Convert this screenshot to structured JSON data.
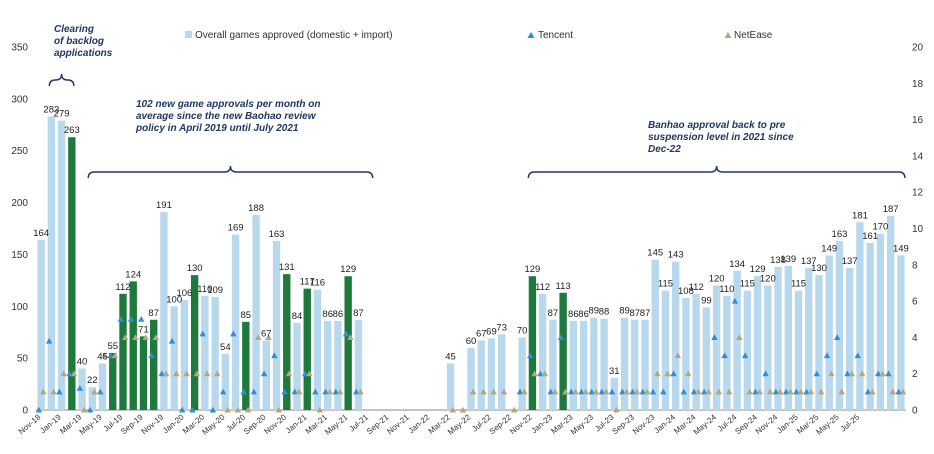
{
  "chart_data": {
    "type": "bar",
    "left_axis": {
      "min": 0,
      "max": 350,
      "step": 50
    },
    "right_axis": {
      "min": 0,
      "max": 20,
      "step": 2
    },
    "legend": {
      "overall": "Overall games approved (domestic + import)",
      "tencent": "Tencent",
      "netease": "NetEase"
    },
    "colors": {
      "light_bar": "#b8d8ee",
      "dark_bar": "#1e7a3c",
      "tencent": "#2e8fd6",
      "netease": "#b5a878",
      "annotation": "#1f3864"
    },
    "x_labels": [
      "Nov-18",
      "Jan-19",
      "Mar-19",
      "May-19",
      "Jul-19",
      "Sep-19",
      "Nov-19",
      "Jan-20",
      "Mar-20",
      "May-20",
      "Jul-20",
      "Sep-20",
      "Nov-20",
      "Jan-21",
      "Mar-21",
      "May-21",
      "Jul-21",
      "Sep-21",
      "Nov-21",
      "Jan-22",
      "Mar-22",
      "May-22",
      "Jul-22",
      "Sep-22",
      "Nov-22",
      "Jan-23",
      "Mar-23",
      "May-23",
      "Jul-23",
      "Sep-23",
      "Nov-23",
      "Jan-24",
      "Mar-24",
      "May-24",
      "Jul-24",
      "Sep-24",
      "Nov-24",
      "Jan-25",
      "Mar-25",
      "May-25",
      "Jul-25"
    ],
    "values": [
      164,
      283,
      279,
      263,
      40,
      22,
      45,
      55,
      112,
      124,
      71,
      87,
      191,
      100,
      106,
      130,
      110,
      109,
      54,
      169,
      85,
      188,
      67,
      163,
      131,
      84,
      117,
      116,
      86,
      86,
      129,
      87,
      0,
      0,
      0,
      0,
      0,
      0,
      0,
      0,
      45,
      0,
      60,
      67,
      69,
      73,
      0,
      70,
      129,
      112,
      87,
      113,
      86,
      86,
      89,
      88,
      31,
      89,
      87,
      87,
      145,
      115,
      143,
      108,
      112,
      99,
      120,
      110,
      134,
      115,
      129,
      120,
      138,
      139,
      115,
      137,
      130,
      149,
      163,
      137,
      181,
      161,
      170,
      187,
      149
    ],
    "data_labels": [
      "164",
      "283",
      "279",
      "263",
      "40",
      "22",
      "45",
      "55",
      "112",
      "124",
      "71",
      "87",
      "191",
      "100",
      "106",
      "130",
      "110",
      "109",
      "54",
      "169",
      "85",
      "188",
      "67",
      "163",
      "131",
      "84",
      "117",
      "116",
      "86",
      "86",
      "129",
      "87",
      "",
      "",
      "",
      "",
      "",
      "",
      "",
      "",
      "45",
      "",
      "60",
      "67",
      "69",
      "73",
      "",
      "70",
      "129",
      "112",
      "87",
      "113",
      "86",
      "86",
      "89",
      "88",
      "31",
      "89",
      "87",
      "87",
      "145",
      "115",
      "143",
      "108",
      "112",
      "99",
      "120",
      "110",
      "134",
      "115",
      "129",
      "120",
      "138",
      "139",
      "115",
      "137",
      "130",
      "149",
      "163",
      "137",
      "181",
      "161",
      "170",
      "187",
      "149"
    ],
    "highlight_bars": [
      3,
      7,
      8,
      9,
      10,
      11,
      15,
      20,
      24,
      26,
      30,
      48,
      51
    ],
    "tencent": [
      0,
      3.8,
      1,
      2,
      1.2,
      0,
      1,
      3,
      5,
      5,
      5,
      3,
      2,
      3.8,
      0,
      0,
      4.2,
      0,
      1,
      4.2,
      1,
      1,
      2,
      3,
      1,
      1,
      2,
      1,
      1,
      1,
      4.2,
      1,
      null,
      null,
      null,
      null,
      null,
      null,
      null,
      null,
      null,
      null,
      null,
      null,
      null,
      null,
      null,
      1,
      3,
      2,
      1,
      4,
      1,
      1,
      1,
      1,
      1,
      1,
      1,
      1,
      1,
      1,
      2,
      1,
      1,
      1,
      4,
      3,
      6,
      3,
      1,
      2,
      1,
      1,
      1,
      1,
      2,
      3,
      4,
      2,
      3,
      1,
      2,
      2,
      1
    ],
    "netease": [
      1,
      1,
      2,
      2,
      0,
      1,
      3,
      3,
      4,
      4,
      4,
      4,
      2,
      2,
      2,
      2,
      2,
      2,
      0,
      0,
      0,
      4,
      4,
      0,
      2,
      1,
      2,
      0,
      1,
      1,
      4,
      1,
      null,
      null,
      null,
      null,
      null,
      null,
      null,
      null,
      0,
      0,
      1,
      1,
      1,
      1,
      0,
      1,
      2,
      2,
      1,
      1,
      1,
      1,
      1,
      1,
      0,
      1,
      1,
      1,
      2,
      2,
      3,
      2,
      1,
      1,
      1,
      1,
      4,
      1,
      1,
      1,
      1,
      1,
      1,
      1,
      1,
      2,
      1,
      2,
      2,
      1,
      2,
      1,
      1
    ],
    "annotations": [
      [
        "Clearing",
        "of backlog",
        "applications"
      ],
      [
        "102 new game approvals  per month on",
        "average since the new Baohao review",
        "policy  in April 2019 until July 2021"
      ],
      [
        "Banhao approval back to pre",
        "suspension level in 2021 since",
        "Dec-22"
      ]
    ]
  }
}
